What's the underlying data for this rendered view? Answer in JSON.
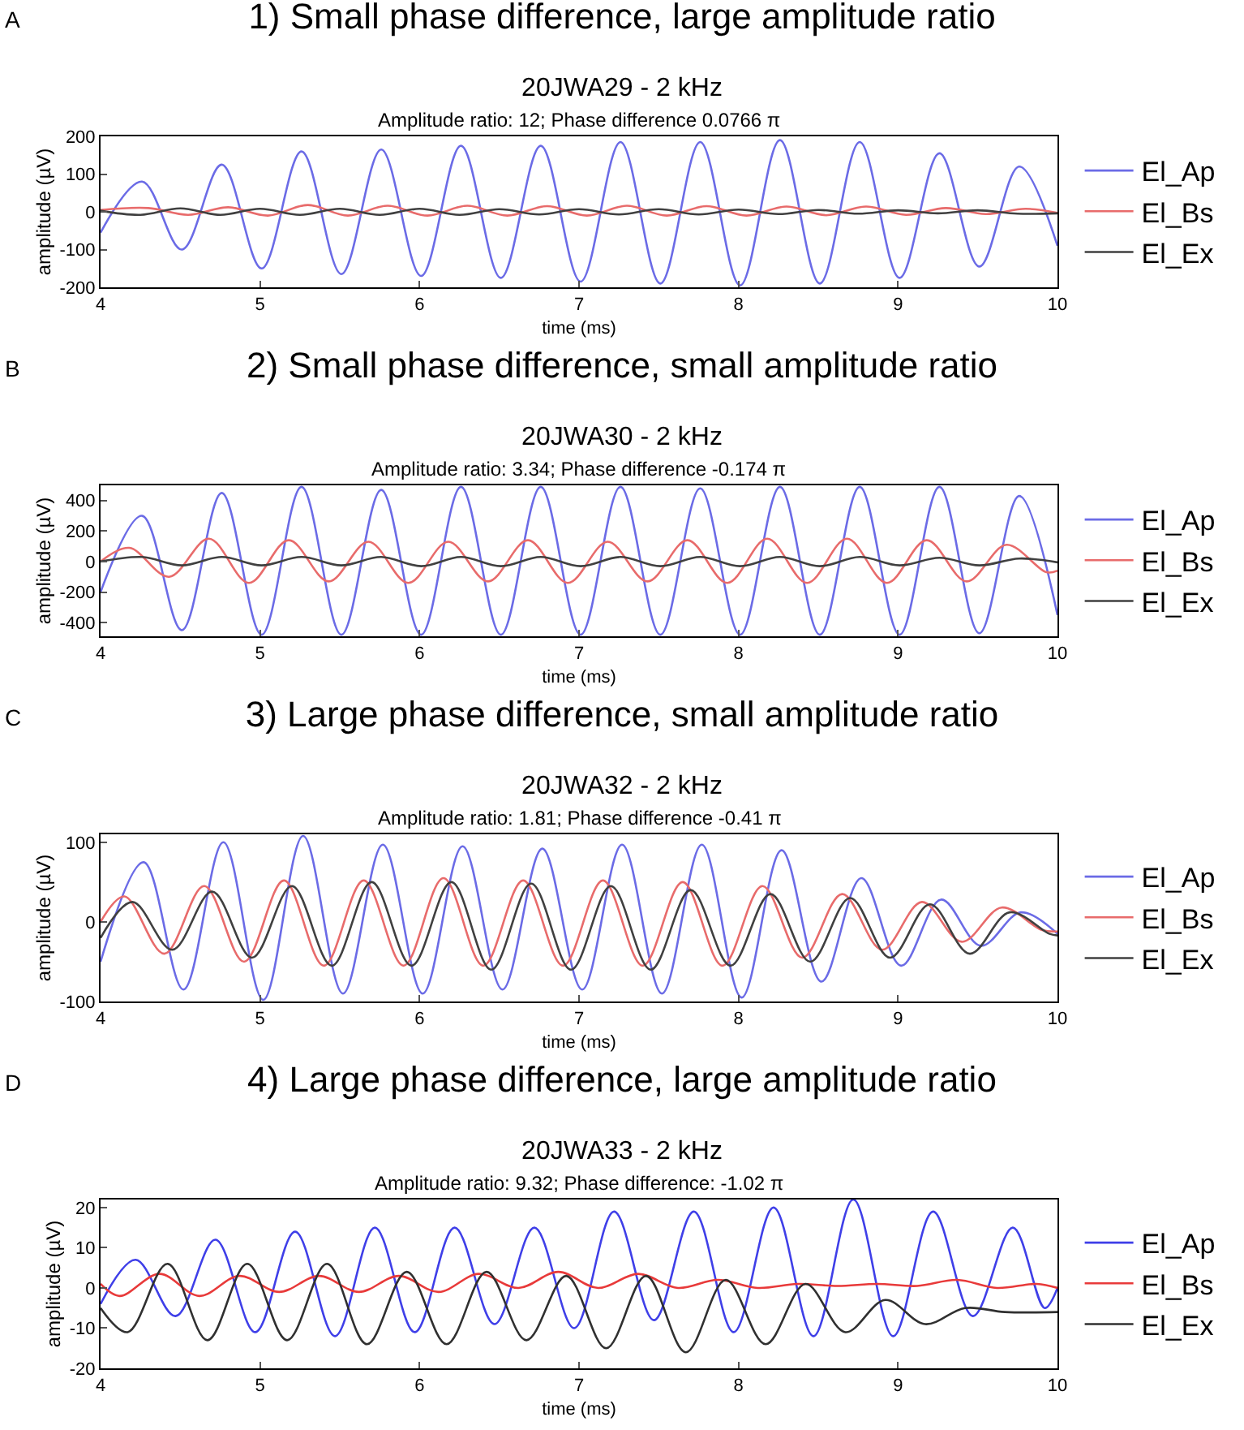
{
  "chart_data": [
    {
      "type": "line",
      "title": "1) Small phase difference, large amplitude ratio",
      "subtitle": "20JWA29 - 2 kHz",
      "annotations": [
        "A",
        "Amplitude ratio: 12; Phase difference 0.0766 π"
      ],
      "xlabel": "time (ms)",
      "ylabel": "amplitude (µV)",
      "xlim": [
        4,
        10
      ],
      "xticks": [
        4,
        5,
        6,
        7,
        8,
        9,
        10
      ],
      "ylim": [
        -200,
        200
      ],
      "yticks": [
        -200,
        -100,
        0,
        100,
        200
      ],
      "grid": false,
      "legend": "right",
      "series": [
        {
          "name": "El_Ap",
          "color": "#6b6be6",
          "x": [
            4,
            4.26,
            4.51,
            4.76,
            5.01,
            5.26,
            5.51,
            5.76,
            6.01,
            6.26,
            6.51,
            6.76,
            7.01,
            7.26,
            7.51,
            7.76,
            8.01,
            8.26,
            8.51,
            8.76,
            9.01,
            9.26,
            9.51,
            9.76,
            10
          ],
          "values": [
            -55,
            80,
            -100,
            125,
            -150,
            160,
            -165,
            165,
            -170,
            175,
            -175,
            175,
            -185,
            185,
            -190,
            185,
            -195,
            190,
            -190,
            185,
            -175,
            155,
            -145,
            120,
            -90
          ]
        },
        {
          "name": "El_Bs",
          "color": "#e86b6b",
          "x": [
            4,
            4.3,
            4.55,
            4.8,
            5.05,
            5.3,
            5.55,
            5.8,
            6.05,
            6.3,
            6.55,
            6.8,
            7.05,
            7.3,
            7.55,
            7.8,
            8.05,
            8.3,
            8.55,
            8.8,
            9.05,
            9.3,
            9.55,
            9.8,
            10
          ],
          "values": [
            5,
            10,
            -8,
            12,
            -10,
            18,
            -10,
            16,
            -10,
            16,
            -10,
            15,
            -10,
            16,
            -10,
            15,
            -10,
            14,
            -9,
            14,
            -8,
            10,
            -6,
            8,
            -3
          ]
        },
        {
          "name": "El_Ex",
          "color": "#404040",
          "x": [
            4,
            4.25,
            4.5,
            4.75,
            5,
            5.25,
            5.5,
            5.75,
            6,
            6.25,
            6.5,
            6.75,
            7,
            7.25,
            7.5,
            7.75,
            8,
            8.25,
            8.5,
            8.75,
            9,
            9.25,
            9.5,
            9.75,
            10
          ],
          "values": [
            3,
            -8,
            9,
            -8,
            8,
            -8,
            8,
            -8,
            8,
            -8,
            7,
            -7,
            7,
            -7,
            7,
            -7,
            6,
            -6,
            5,
            -5,
            4,
            -4,
            4,
            -5,
            -4
          ]
        }
      ]
    },
    {
      "type": "line",
      "title": "2) Small phase difference, small amplitude ratio",
      "subtitle": "20JWA30 - 2 kHz",
      "annotations": [
        "B",
        "Amplitude ratio: 3.34; Phase difference -0.174 π"
      ],
      "xlabel": "time (ms)",
      "ylabel": "amplitude (µV)",
      "xlim": [
        4,
        10
      ],
      "xticks": [
        4,
        5,
        6,
        7,
        8,
        9,
        10
      ],
      "ylim": [
        -490,
        500
      ],
      "yticks": [
        -400,
        -200,
        0,
        200,
        400
      ],
      "grid": false,
      "legend": "right",
      "series": [
        {
          "name": "El_Ap",
          "color": "#6b6be6",
          "x": [
            4,
            4.26,
            4.51,
            4.76,
            5.01,
            5.26,
            5.51,
            5.76,
            6.01,
            6.26,
            6.51,
            6.76,
            7.01,
            7.26,
            7.51,
            7.76,
            8.01,
            8.26,
            8.51,
            8.76,
            9.01,
            9.26,
            9.51,
            9.76,
            10
          ],
          "values": [
            -200,
            300,
            -450,
            450,
            -480,
            490,
            -480,
            470,
            -480,
            490,
            -480,
            490,
            -480,
            490,
            -480,
            480,
            -480,
            490,
            -480,
            490,
            -480,
            490,
            -470,
            430,
            -350
          ]
        },
        {
          "name": "El_Bs",
          "color": "#e86b6b",
          "x": [
            4,
            4.18,
            4.43,
            4.68,
            4.93,
            5.18,
            5.43,
            5.68,
            5.93,
            6.18,
            6.43,
            6.68,
            6.93,
            7.18,
            7.43,
            7.68,
            7.93,
            8.18,
            8.43,
            8.68,
            8.93,
            9.18,
            9.43,
            9.68,
            9.93,
            10
          ],
          "values": [
            0,
            90,
            -100,
            150,
            -140,
            140,
            -130,
            130,
            -140,
            130,
            -130,
            140,
            -140,
            130,
            -130,
            140,
            -140,
            150,
            -140,
            150,
            -140,
            140,
            -130,
            110,
            -70,
            -60
          ]
        },
        {
          "name": "El_Ex",
          "color": "#404040",
          "x": [
            4,
            4.26,
            4.51,
            4.76,
            5.01,
            5.26,
            5.51,
            5.76,
            6.01,
            6.26,
            6.51,
            6.76,
            7.01,
            7.26,
            7.51,
            7.76,
            8.01,
            8.26,
            8.51,
            8.76,
            9.01,
            9.26,
            9.51,
            9.76,
            10
          ],
          "values": [
            0,
            30,
            -25,
            30,
            -25,
            30,
            -25,
            30,
            -30,
            30,
            -30,
            30,
            -30,
            30,
            -30,
            30,
            -30,
            30,
            -30,
            30,
            -25,
            25,
            -25,
            20,
            -5
          ]
        }
      ]
    },
    {
      "type": "line",
      "title": "3) Large phase difference, small amplitude ratio",
      "subtitle": "20JWA32 - 2 kHz",
      "annotations": [
        "C",
        "Amplitude ratio: 1.81; Phase difference -0.41 π"
      ],
      "xlabel": "time (ms)",
      "ylabel": "amplitude (µV)",
      "xlim": [
        4,
        10
      ],
      "xticks": [
        4,
        5,
        6,
        7,
        8,
        9,
        10
      ],
      "ylim": [
        -100,
        110
      ],
      "yticks": [
        -100,
        0,
        100
      ],
      "grid": false,
      "legend": "right",
      "series": [
        {
          "name": "El_Ap",
          "color": "#6b6be6",
          "x": [
            4,
            4.27,
            4.52,
            4.77,
            5.02,
            5.27,
            5.52,
            5.77,
            6.02,
            6.27,
            6.52,
            6.77,
            7.02,
            7.27,
            7.52,
            7.77,
            8.02,
            8.27,
            8.52,
            8.77,
            9.02,
            9.27,
            9.52,
            9.77,
            10
          ],
          "values": [
            -50,
            75,
            -85,
            100,
            -98,
            108,
            -90,
            97,
            -90,
            95,
            -85,
            92,
            -85,
            97,
            -90,
            97,
            -95,
            90,
            -75,
            55,
            -55,
            28,
            -30,
            12,
            -15
          ]
        },
        {
          "name": "El_Bs",
          "color": "#e86b6b",
          "x": [
            4,
            4.15,
            4.4,
            4.65,
            4.9,
            5.15,
            5.4,
            5.65,
            5.9,
            6.15,
            6.4,
            6.65,
            6.9,
            7.15,
            7.4,
            7.65,
            7.9,
            8.15,
            8.4,
            8.65,
            8.9,
            9.15,
            9.4,
            9.65,
            9.9,
            10
          ],
          "values": [
            0,
            32,
            -40,
            45,
            -50,
            52,
            -55,
            52,
            -55,
            55,
            -55,
            52,
            -55,
            52,
            -55,
            50,
            -55,
            45,
            -45,
            35,
            -35,
            25,
            -25,
            18,
            -10,
            -12
          ]
        },
        {
          "name": "El_Ex",
          "color": "#404040",
          "x": [
            4,
            4.2,
            4.45,
            4.7,
            4.95,
            5.2,
            5.45,
            5.7,
            5.95,
            6.2,
            6.45,
            6.7,
            6.95,
            7.2,
            7.45,
            7.7,
            7.95,
            8.2,
            8.45,
            8.7,
            8.95,
            9.2,
            9.45,
            9.7,
            9.95,
            10
          ],
          "values": [
            -20,
            25,
            -35,
            38,
            -45,
            45,
            -55,
            50,
            -55,
            50,
            -60,
            48,
            -60,
            45,
            -60,
            40,
            -55,
            35,
            -50,
            30,
            -45,
            22,
            -40,
            12,
            -15,
            -17
          ]
        }
      ]
    },
    {
      "type": "line",
      "title": "4) Large phase difference, large amplitude ratio",
      "subtitle": "20JWA33 - 2 kHz",
      "annotations": [
        "D",
        "Amplitude ratio: 9.32; Phase difference: -1.02 π"
      ],
      "xlabel": "time (ms)",
      "ylabel": "amplitude (µV)",
      "xlim": [
        4,
        10
      ],
      "xticks": [
        4,
        5,
        6,
        7,
        8,
        9,
        10
      ],
      "ylim": [
        -20,
        22
      ],
      "yticks": [
        -20,
        -10,
        0,
        10,
        20
      ],
      "grid": false,
      "legend": "right",
      "series": [
        {
          "name": "El_Ap",
          "color": "#3f3fe8",
          "x": [
            4,
            4.22,
            4.47,
            4.72,
            4.97,
            5.22,
            5.47,
            5.72,
            5.97,
            6.22,
            6.47,
            6.72,
            6.97,
            7.22,
            7.47,
            7.72,
            7.97,
            8.22,
            8.47,
            8.72,
            8.97,
            9.22,
            9.47,
            9.72,
            9.92,
            10
          ],
          "values": [
            -4,
            7,
            -7,
            12,
            -11,
            14,
            -12,
            15,
            -11,
            15,
            -9,
            15,
            -10,
            19,
            -8,
            19,
            -11,
            20,
            -12,
            22,
            -12,
            19,
            -7,
            15,
            -5,
            0
          ]
        },
        {
          "name": "El_Bs",
          "color": "#e83a3a",
          "x": [
            4,
            4.12,
            4.37,
            4.62,
            4.87,
            5.12,
            5.37,
            5.62,
            5.87,
            6.12,
            6.37,
            6.62,
            6.87,
            7.12,
            7.37,
            7.62,
            7.87,
            8.12,
            8.37,
            8.62,
            8.87,
            9.12,
            9.37,
            9.62,
            9.87,
            10
          ],
          "values": [
            1,
            -2,
            3.5,
            -2,
            3,
            -1,
            3,
            -1,
            3,
            -1,
            3.5,
            0,
            4,
            0,
            3.5,
            0,
            2,
            0,
            1,
            0.5,
            1,
            0.5,
            2,
            0,
            1,
            0
          ]
        },
        {
          "name": "El_Ex",
          "color": "#303030",
          "x": [
            4,
            4.17,
            4.42,
            4.67,
            4.92,
            5.17,
            5.42,
            5.67,
            5.92,
            6.17,
            6.42,
            6.67,
            6.92,
            7.17,
            7.42,
            7.67,
            7.92,
            8.17,
            8.42,
            8.67,
            8.92,
            9.17,
            9.42,
            9.67,
            10
          ],
          "values": [
            -5,
            -11,
            6,
            -13,
            6,
            -13,
            6,
            -14,
            4,
            -14,
            4,
            -13,
            3,
            -15,
            3,
            -16,
            2,
            -14,
            1,
            -11,
            -3,
            -9,
            -5,
            -6,
            -6
          ]
        }
      ]
    }
  ]
}
